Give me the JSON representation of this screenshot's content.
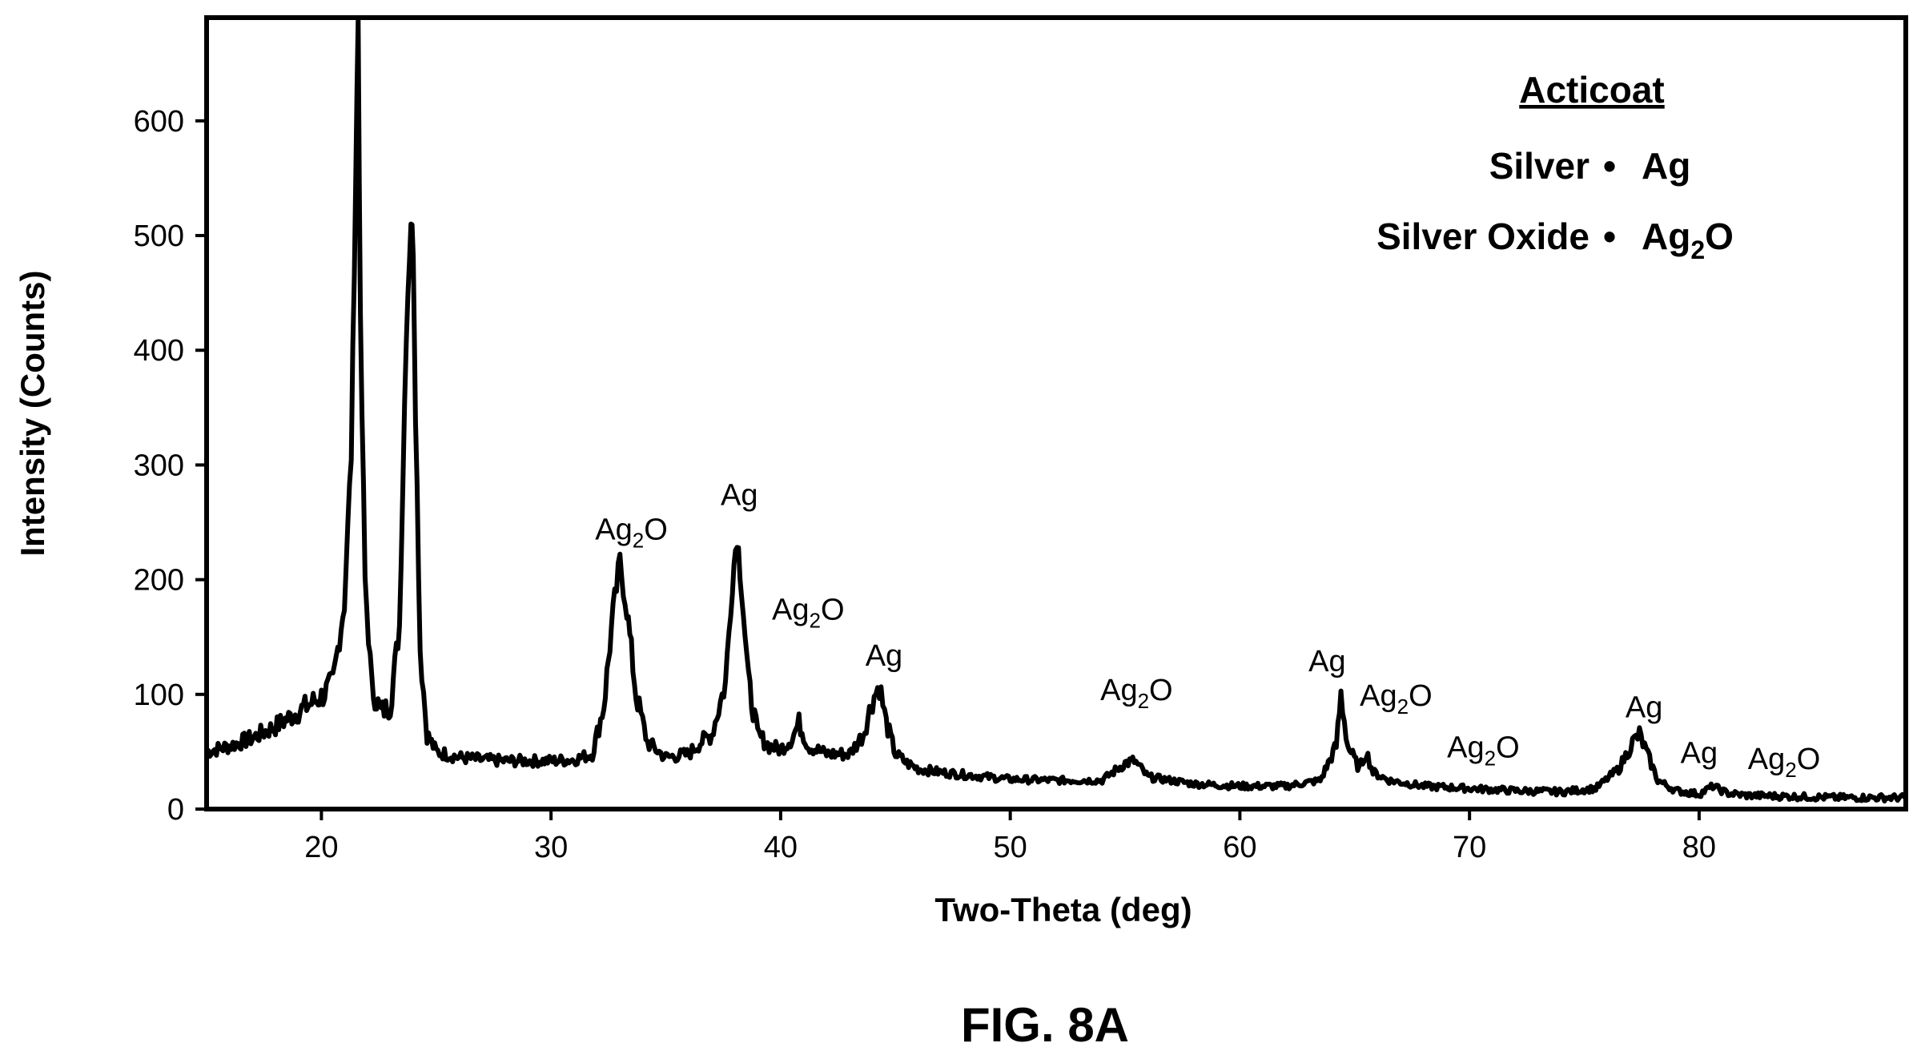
{
  "figure": {
    "caption": "FIG. 8A"
  },
  "chart_data": {
    "type": "line",
    "title": "",
    "xlabel": "Two-Theta (deg)",
    "ylabel": "Intensity (Counts)",
    "xlim": [
      15,
      89
    ],
    "ylim": [
      0,
      690
    ],
    "xticks": [
      20,
      30,
      40,
      50,
      60,
      70,
      80
    ],
    "yticks": [
      0,
      100,
      200,
      300,
      400,
      500,
      600
    ],
    "grid": false,
    "legend": {
      "placement": "top-right",
      "title": "Acticoat",
      "entries": [
        {
          "name": "Silver",
          "symbol": "Ag",
          "marker": "•"
        },
        {
          "name": "Silver Oxide",
          "symbol": "Ag2O",
          "marker": "•"
        }
      ]
    },
    "series": [
      {
        "color": "#000000",
        "x": [
          15,
          16,
          17,
          18,
          19,
          20,
          20.5,
          21,
          21.3,
          21.5,
          21.6,
          21.7,
          21.9,
          22.2,
          22.6,
          23,
          23.4,
          23.7,
          23.9,
          24.0,
          24.1,
          24.3,
          24.6,
          25,
          26,
          27,
          28,
          29,
          30,
          31,
          31.8,
          32.3,
          32.7,
          33.0,
          33.3,
          33.7,
          34.2,
          35,
          36,
          36.5,
          37,
          37.6,
          37.9,
          38.1,
          38.3,
          38.6,
          39,
          39.5,
          40,
          40.5,
          40.8,
          41.2,
          42,
          43,
          43.6,
          44.0,
          44.3,
          44.6,
          45,
          45.5,
          46,
          47,
          48,
          50,
          52,
          54,
          55.0,
          55.4,
          56,
          58,
          60,
          62,
          63.5,
          64.2,
          64.4,
          64.7,
          65.2,
          65.5,
          65.8,
          66.5,
          68,
          70,
          72,
          74,
          75.5,
          76.5,
          77.1,
          77.4,
          77.7,
          78.2,
          79,
          80,
          80.6,
          81.2,
          82,
          84,
          86,
          88,
          89
        ],
        "y": [
          50,
          55,
          62,
          72,
          85,
          98,
          110,
          180,
          310,
          560,
          690,
          420,
          200,
          105,
          85,
          90,
          160,
          420,
          515,
          490,
          350,
          140,
          65,
          50,
          45,
          43,
          42,
          42,
          42,
          43,
          48,
          90,
          170,
          215,
          175,
          100,
          58,
          45,
          48,
          58,
          65,
          110,
          200,
          240,
          195,
          110,
          65,
          55,
          52,
          62,
          75,
          55,
          48,
          48,
          65,
          95,
          108,
          75,
          48,
          40,
          35,
          32,
          30,
          26,
          25,
          25,
          40,
          42,
          28,
          22,
          20,
          20,
          25,
          55,
          100,
          55,
          35,
          50,
          32,
          25,
          20,
          18,
          16,
          15,
          18,
          35,
          58,
          65,
          50,
          25,
          16,
          13,
          20,
          14,
          12,
          11,
          10,
          10,
          10
        ]
      }
    ],
    "annotations": [
      {
        "text": "Ag",
        "sub": "2",
        "suffix": "O",
        "x": 33.5,
        "y": 235
      },
      {
        "text": "Ag",
        "sub": "",
        "suffix": "",
        "x": 38.2,
        "y": 265
      },
      {
        "text": "Ag",
        "sub": "2",
        "suffix": "O",
        "x": 41.2,
        "y": 165
      },
      {
        "text": "Ag",
        "sub": "",
        "suffix": "",
        "x": 44.5,
        "y": 125
      },
      {
        "text": "Ag",
        "sub": "2",
        "suffix": "O",
        "x": 55.5,
        "y": 95
      },
      {
        "text": "Ag",
        "sub": "",
        "suffix": "",
        "x": 63.8,
        "y": 120
      },
      {
        "text": "Ag",
        "sub": "2",
        "suffix": "O",
        "x": 66.8,
        "y": 90
      },
      {
        "text": "Ag",
        "sub": "2",
        "suffix": "O",
        "x": 70.6,
        "y": 45
      },
      {
        "text": "Ag",
        "sub": "",
        "suffix": "",
        "x": 77.6,
        "y": 80
      },
      {
        "text": "Ag",
        "sub": "",
        "suffix": "",
        "x": 80.0,
        "y": 40
      },
      {
        "text": "Ag",
        "sub": "2",
        "suffix": "O",
        "x": 83.7,
        "y": 35
      }
    ]
  }
}
